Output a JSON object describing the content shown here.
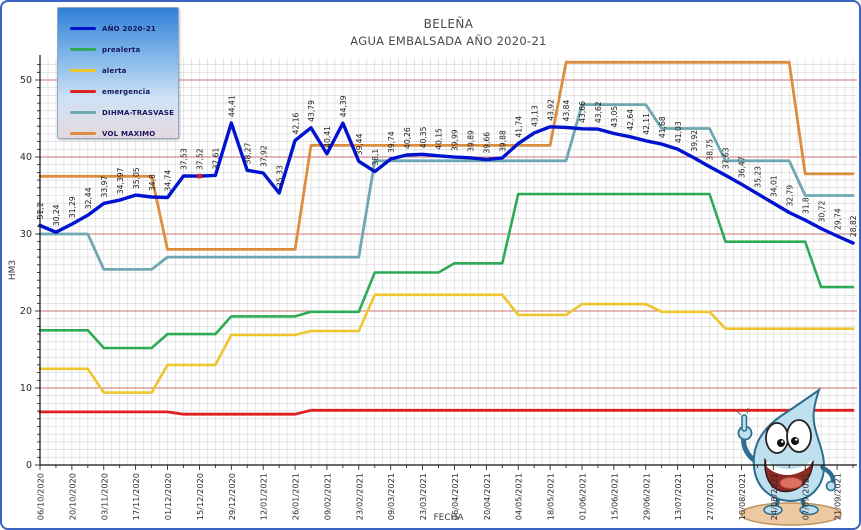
{
  "title": {
    "line1": "BELEÑA",
    "line2": "AGUA EMBALSADA AÑO 2020-21"
  },
  "legend": {
    "items": [
      {
        "label": "AÑO 2020-21",
        "color": "#0013cf"
      },
      {
        "label": "prealerta",
        "color": "#2fab57"
      },
      {
        "label": "alerta",
        "color": "#eec52c"
      },
      {
        "label": "emergencia",
        "color": "#e01f1f"
      },
      {
        "label": "DIHMA-TRASVASE",
        "color": "#6fa8b0"
      },
      {
        "label": "VOL MAXIMO",
        "color": "#dd8d3e"
      }
    ]
  },
  "axes": {
    "y_label": "HM3",
    "x_label": "FECHA"
  },
  "mascot": {
    "alt": "cartoon water drop mascot pointing up"
  },
  "colors": {
    "grid_minor": "#d6d6d6",
    "grid_major": "#cd7474",
    "axis": "#111111",
    "tick_text": "#2b2b2b",
    "value_label_text": "#222222",
    "frame_border": "#3b63c4"
  },
  "chart_data": {
    "type": "line",
    "title": "BELEÑA — AGUA EMBALSADA AÑO 2020-21",
    "xlabel": "FECHA",
    "ylabel": "HM3",
    "ylim": [
      0,
      52.5
    ],
    "grid": true,
    "legend_position": "top-left",
    "y_ticks": [
      0,
      10,
      20,
      30,
      40,
      50
    ],
    "weeks_per_tick": 2,
    "x_tick_labels": [
      "06/10/2020",
      "20/10/2020",
      "03/11/2020",
      "17/11/2020",
      "01/12/2020",
      "15/12/2020",
      "29/12/2020",
      "12/01/2021",
      "26/01/2021",
      "09/02/2021",
      "23/02/2021",
      "09/03/2021",
      "23/03/2021",
      "06/04/2021",
      "20/04/2021",
      "04/05/2021",
      "18/05/2021",
      "01/06/2021",
      "15/06/2021",
      "29/06/2021",
      "13/07/2021",
      "27/07/2021",
      "10/08/2021",
      "24/08/2021",
      "07/09/2021",
      "21/09/2021"
    ],
    "series": [
      {
        "name": "AÑO 2020-21",
        "color": "#0013cf",
        "width": 3.4,
        "values": [
          31.1,
          30.24,
          31.29,
          32.44,
          33.97,
          34.397,
          35.05,
          34.8,
          34.74,
          37.53,
          37.52,
          37.61,
          44.41,
          38.27,
          37.92,
          35.33,
          42.16,
          43.79,
          40.41,
          44.39,
          39.44,
          38.1,
          39.74,
          40.26,
          40.35,
          40.15,
          39.99,
          39.89,
          39.66,
          39.88,
          41.74,
          43.13,
          43.92,
          43.84,
          43.66,
          43.62,
          43.05,
          42.64,
          42.11,
          41.68,
          41.03,
          39.92,
          38.75,
          37.63,
          36.47,
          35.23,
          34.01,
          32.79,
          31.8,
          30.72,
          29.74,
          28.82
        ],
        "point_labels": [
          "31,1",
          "30,24",
          "31,29",
          "32,44",
          "33,97",
          "34,397",
          "35,05",
          "34,8",
          "34,74",
          "37,53",
          "37,52",
          "37,61",
          "44,41",
          "38,27",
          "37,92",
          "35,33",
          "42,16",
          "43,79",
          "40,41",
          "44,39",
          "39,44",
          "38,1",
          "39,74",
          "40,26",
          "40,35",
          "40,15",
          "39,99",
          "39,89",
          "39,66",
          "39,88",
          "41,74",
          "43,13",
          "43,92",
          "43,84",
          "43,66",
          "43,62",
          "43,05",
          "42,64",
          "42,11",
          "41,68",
          "41,03",
          "39,92",
          "38,75",
          "37,63",
          "36,47",
          "35,23",
          "34,01",
          "32,79",
          "31,8",
          "30,72",
          "29,74",
          "28,82"
        ],
        "highlight_index": 10
      },
      {
        "name": "prealerta",
        "color": "#2fab57",
        "width": 2.6,
        "values": [
          17.5,
          17.5,
          17.5,
          17.5,
          15.2,
          15.2,
          15.2,
          15.2,
          17.0,
          17.0,
          17.0,
          17.0,
          19.3,
          19.3,
          19.3,
          19.3,
          19.3,
          19.9,
          19.9,
          19.9,
          19.9,
          25.0,
          25.0,
          25.0,
          25.0,
          25.0,
          26.2,
          26.2,
          26.2,
          26.2,
          35.2,
          35.2,
          35.2,
          35.2,
          35.2,
          35.2,
          35.2,
          35.2,
          35.2,
          35.2,
          35.2,
          35.2,
          35.2,
          29.0,
          29.0,
          29.0,
          29.0,
          29.0,
          29.0,
          23.1,
          23.1,
          23.1
        ]
      },
      {
        "name": "alerta",
        "color": "#eec52c",
        "width": 2.6,
        "values": [
          12.5,
          12.5,
          12.5,
          12.5,
          9.4,
          9.4,
          9.4,
          9.4,
          13.0,
          13.0,
          13.0,
          13.0,
          16.9,
          16.9,
          16.9,
          16.9,
          16.9,
          17.4,
          17.4,
          17.4,
          17.4,
          22.1,
          22.1,
          22.1,
          22.1,
          22.1,
          22.1,
          22.1,
          22.1,
          22.1,
          19.5,
          19.5,
          19.5,
          19.5,
          20.9,
          20.9,
          20.9,
          20.9,
          20.9,
          19.9,
          19.9,
          19.9,
          19.9,
          17.7,
          17.7,
          17.7,
          17.7,
          17.7,
          17.7,
          17.7,
          17.7,
          17.7
        ]
      },
      {
        "name": "emergencia",
        "color": "#e01f1f",
        "width": 2.8,
        "values": [
          6.9,
          6.9,
          6.9,
          6.9,
          6.9,
          6.9,
          6.9,
          6.9,
          6.9,
          6.6,
          6.6,
          6.6,
          6.6,
          6.6,
          6.6,
          6.6,
          6.6,
          7.1,
          7.1,
          7.1,
          7.1,
          7.1,
          7.1,
          7.1,
          7.1,
          7.1,
          7.1,
          7.1,
          7.1,
          7.1,
          7.1,
          7.1,
          7.1,
          7.1,
          7.1,
          7.1,
          7.1,
          7.1,
          7.1,
          7.1,
          7.1,
          7.1,
          7.1,
          7.1,
          7.1,
          7.1,
          7.1,
          7.1,
          7.1,
          7.1,
          7.1,
          7.1
        ]
      },
      {
        "name": "DIHMA-TRASVASE",
        "color": "#6fa8b0",
        "width": 2.8,
        "values": [
          30.0,
          30.0,
          30.0,
          30.0,
          25.4,
          25.4,
          25.4,
          25.4,
          27.0,
          27.0,
          27.0,
          27.0,
          27.0,
          27.0,
          27.0,
          27.0,
          27.0,
          27.0,
          27.0,
          27.0,
          27.0,
          39.5,
          39.5,
          39.5,
          39.5,
          39.5,
          39.5,
          39.5,
          39.5,
          39.5,
          39.5,
          39.5,
          39.5,
          39.5,
          46.8,
          46.8,
          46.8,
          46.8,
          46.8,
          43.7,
          43.7,
          43.7,
          43.7,
          39.5,
          39.5,
          39.5,
          39.5,
          39.5,
          35.0,
          35.0,
          35.0,
          35.0
        ]
      },
      {
        "name": "VOL MAXIMO",
        "color": "#dd8d3e",
        "width": 2.8,
        "values": [
          37.5,
          37.5,
          37.5,
          37.5,
          37.5,
          37.5,
          37.5,
          37.5,
          28.0,
          28.0,
          28.0,
          28.0,
          28.0,
          28.0,
          28.0,
          28.0,
          28.0,
          41.5,
          41.5,
          41.5,
          41.5,
          41.5,
          41.5,
          41.5,
          41.5,
          41.5,
          41.5,
          41.5,
          41.5,
          41.5,
          41.5,
          41.5,
          41.5,
          52.3,
          52.3,
          52.3,
          52.3,
          52.3,
          52.3,
          52.3,
          52.3,
          52.3,
          52.3,
          52.3,
          52.3,
          52.3,
          52.3,
          52.3,
          37.8,
          37.8,
          37.8,
          37.8
        ]
      }
    ]
  }
}
